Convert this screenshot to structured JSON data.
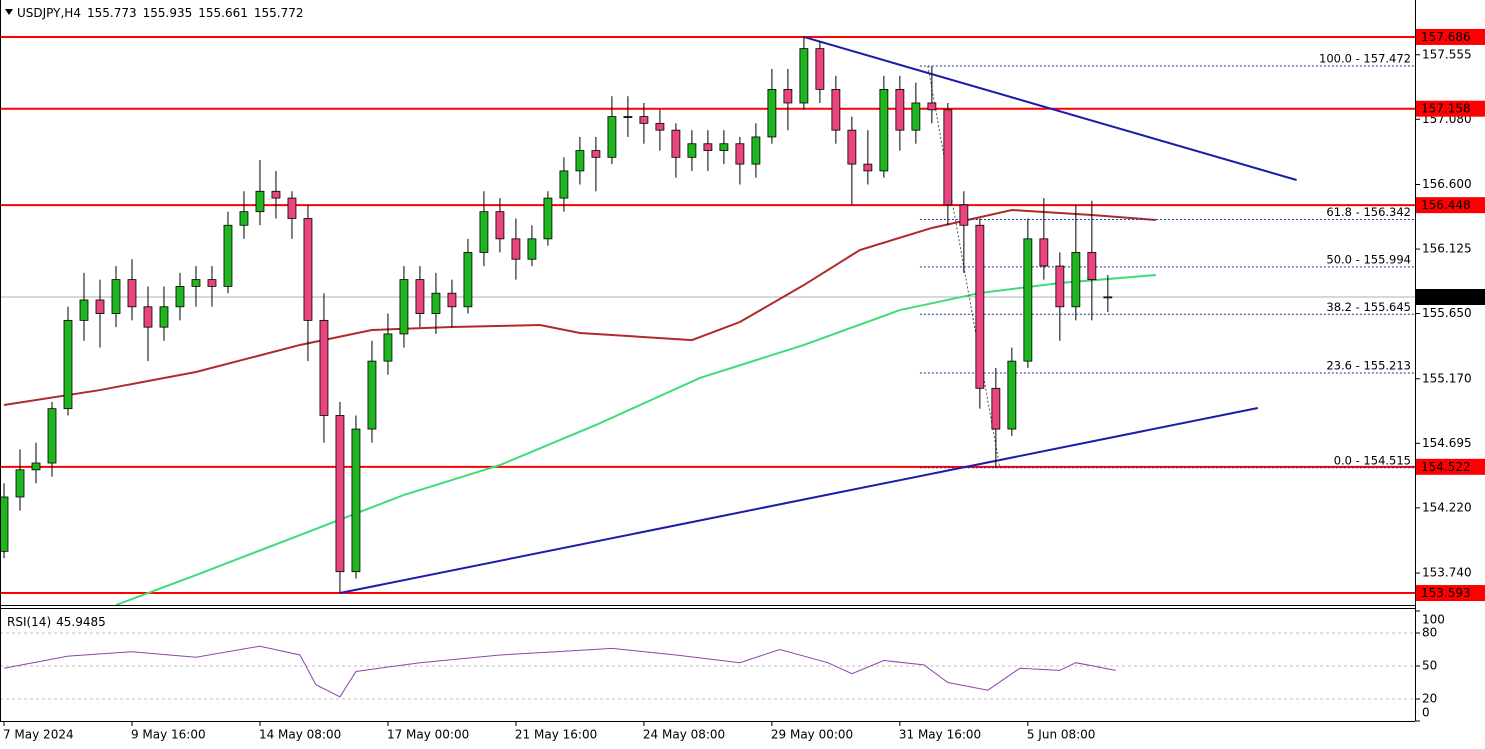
{
  "chart_data": [
    {
      "type": "candlestick",
      "symbol": "USDJPY,H4",
      "header_values": [
        155.773,
        155.935,
        155.661,
        155.772
      ],
      "x": [
        0,
        2,
        4,
        6,
        8,
        10,
        12,
        14,
        16,
        18,
        20,
        22,
        24,
        26,
        28,
        30,
        32,
        34,
        36,
        38,
        40,
        42,
        44,
        46,
        48,
        50,
        52,
        54,
        56,
        58,
        60,
        62,
        64,
        66,
        68,
        70,
        72,
        74,
        76,
        78,
        80,
        82,
        84,
        86,
        88,
        90,
        92,
        94,
        96,
        98,
        100,
        102,
        104,
        106,
        108,
        110,
        112,
        114,
        116,
        118,
        120,
        122,
        124,
        126,
        128,
        130,
        132,
        134,
        136,
        138
      ],
      "open": [
        153.9,
        154.3,
        154.5,
        154.55,
        154.95,
        155.6,
        155.75,
        155.65,
        155.9,
        155.7,
        155.55,
        155.7,
        155.85,
        155.9,
        155.85,
        156.3,
        156.4,
        156.55,
        156.5,
        156.35,
        155.6,
        154.9,
        153.75,
        154.8,
        155.3,
        155.5,
        155.9,
        155.65,
        155.8,
        155.7,
        156.1,
        156.4,
        156.2,
        156.05,
        156.2,
        156.5,
        156.7,
        156.85,
        156.8,
        157.1,
        157.1,
        157.05,
        157.0,
        156.8,
        156.9,
        156.85,
        156.9,
        156.75,
        156.95,
        157.3,
        157.2,
        157.6,
        157.3,
        157.0,
        156.75,
        156.7,
        157.3,
        157.0,
        157.2,
        157.15,
        156.45,
        156.3,
        155.1,
        154.8,
        155.3,
        156.2,
        156.0,
        155.7,
        156.1,
        155.773
      ],
      "high": [
        154.4,
        154.65,
        154.7,
        155.0,
        155.7,
        155.95,
        155.9,
        156.0,
        156.05,
        155.85,
        155.85,
        155.95,
        156.0,
        156.0,
        156.4,
        156.55,
        156.78,
        156.7,
        156.55,
        156.45,
        155.8,
        155.0,
        154.9,
        155.45,
        155.65,
        156.0,
        156.0,
        155.95,
        155.9,
        156.2,
        156.55,
        156.5,
        156.35,
        156.3,
        156.55,
        156.8,
        156.95,
        156.95,
        157.25,
        157.25,
        157.2,
        157.15,
        157.05,
        157.0,
        157.0,
        157.0,
        156.95,
        157.05,
        157.45,
        157.45,
        157.686,
        157.65,
        157.4,
        157.1,
        157.0,
        157.4,
        157.4,
        157.35,
        157.472,
        157.2,
        156.55,
        156.35,
        155.25,
        155.4,
        156.35,
        156.5,
        156.1,
        156.45,
        156.48,
        155.935
      ],
      "low": [
        153.85,
        154.2,
        154.4,
        154.45,
        154.9,
        155.45,
        155.4,
        155.55,
        155.6,
        155.3,
        155.45,
        155.6,
        155.7,
        155.7,
        155.8,
        156.2,
        156.3,
        156.35,
        156.2,
        155.3,
        154.7,
        153.593,
        153.7,
        154.7,
        155.2,
        155.4,
        155.55,
        155.5,
        155.55,
        155.65,
        156.0,
        156.1,
        155.9,
        156.0,
        156.15,
        156.4,
        156.6,
        156.55,
        156.75,
        156.95,
        156.9,
        156.85,
        156.65,
        156.7,
        156.7,
        156.75,
        156.6,
        156.65,
        156.9,
        157.0,
        157.15,
        157.2,
        156.9,
        156.45,
        156.6,
        156.65,
        156.85,
        156.9,
        157.05,
        156.3,
        155.95,
        154.95,
        154.515,
        154.75,
        155.25,
        155.9,
        155.45,
        155.6,
        155.6,
        155.661
      ],
      "close": [
        154.3,
        154.5,
        154.55,
        154.95,
        155.6,
        155.75,
        155.65,
        155.9,
        155.7,
        155.55,
        155.7,
        155.85,
        155.9,
        155.85,
        156.3,
        156.4,
        156.55,
        156.5,
        156.35,
        155.6,
        154.9,
        153.75,
        154.8,
        155.3,
        155.5,
        155.9,
        155.65,
        155.8,
        155.7,
        156.1,
        156.4,
        156.2,
        156.05,
        156.2,
        156.5,
        156.7,
        156.85,
        156.8,
        157.1,
        157.1,
        157.05,
        157.0,
        156.8,
        156.9,
        156.85,
        156.9,
        156.75,
        156.95,
        157.3,
        157.2,
        157.6,
        157.3,
        157.0,
        156.75,
        156.7,
        157.3,
        157.0,
        157.2,
        157.15,
        156.45,
        156.3,
        155.1,
        154.8,
        155.3,
        156.2,
        156.0,
        155.7,
        156.1,
        155.9,
        155.772
      ],
      "up_color": "#1fb51f",
      "down_color": "#e8447e",
      "xlim": [
        -0.5,
        176.4
      ],
      "ylim": [
        153.505,
        157.958
      ],
      "yticks": [
        {
          "value": 157.555,
          "label": "157.555"
        },
        {
          "value": 157.08,
          "label": "157.080"
        },
        {
          "value": 156.6,
          "label": "156.600"
        },
        156.125,
        {
          "value": 155.65,
          "label": "155.650"
        },
        {
          "value": 155.17,
          "label": "155.170"
        },
        154.695,
        {
          "value": 154.22,
          "label": "154.220"
        },
        {
          "value": 153.74,
          "label": "153.740"
        }
      ],
      "xticks": [
        {
          "value": 0,
          "label": "7 May 2024"
        },
        {
          "value": 16,
          "label": "9 May 16:00"
        },
        {
          "value": 32,
          "label": "14 May 08:00"
        },
        {
          "value": 48,
          "label": "17 May 00:00"
        },
        {
          "value": 64,
          "label": "21 May 16:00"
        },
        {
          "value": 80,
          "label": "24 May 08:00"
        },
        {
          "value": 96,
          "label": "29 May 00:00"
        },
        {
          "value": 112,
          "label": "31 May 16:00"
        },
        {
          "value": 128,
          "label": "5 Jun 08:00"
        }
      ],
      "levels": [
        157.686,
        157.158,
        156.448,
        154.522,
        153.593
      ],
      "level_color": "#ff0000",
      "last_price": 155.772,
      "series": [
        {
          "color": "#b02a2a",
          "x": [
            0,
            12,
            24,
            37,
            46,
            56,
            67,
            72,
            86,
            92,
            100,
            107,
            116,
            126,
            136,
            144
          ],
          "values": [
            154.977,
            155.087,
            155.22,
            155.419,
            155.529,
            155.551,
            155.566,
            155.507,
            155.455,
            155.588,
            155.86,
            156.118,
            156.28,
            156.412,
            156.376,
            156.339
          ]
        },
        {
          "color": "#3ddc78",
          "x": [
            14,
            24,
            37,
            50,
            62,
            74,
            87,
            100,
            112,
            122,
            132,
            144
          ],
          "values": [
            153.505,
            153.725,
            154.02,
            154.315,
            154.535,
            154.83,
            155.176,
            155.419,
            155.676,
            155.801,
            155.875,
            155.934
          ]
        }
      ],
      "trendlines": [
        {
          "color": "#1c1ca8",
          "x": [
            100,
            161.6
          ],
          "values": [
            157.686,
            156.633
          ]
        },
        {
          "color": "#1c1ca8",
          "x": [
            42,
            156.75
          ],
          "values": [
            153.593,
            154.955
          ]
        }
      ],
      "fibonacci": {
        "color": "#1f2f9a",
        "x": [
          115.5,
          124.5
        ],
        "levels": [
          {
            "value": 157.472,
            "label": "100.0 - 157.472"
          },
          {
            "value": 156.342,
            "label": "61.8 - 156.342"
          },
          {
            "value": 155.994,
            "label": "50.0 - 155.994"
          },
          {
            "value": 155.645,
            "label": "38.2 - 155.645"
          },
          {
            "value": 155.213,
            "label": "23.6 - 155.213"
          },
          {
            "value": 154.515,
            "label": "0.0 - 154.515"
          }
        ]
      }
    },
    {
      "type": "line",
      "title": "RSI(14)",
      "last_value": 45.9485,
      "color": "#8e44ad",
      "x": [
        0,
        8,
        16,
        24,
        32,
        37,
        39,
        42,
        44,
        52,
        62,
        69,
        76,
        84,
        92,
        97,
        103,
        106,
        110,
        115,
        118,
        123,
        127,
        132,
        134,
        139
      ],
      "values": [
        48,
        59,
        63,
        58,
        68,
        60,
        33,
        22,
        45,
        53,
        60,
        63,
        66,
        60,
        53,
        65,
        53,
        43,
        55,
        51,
        35,
        28,
        48,
        46,
        53,
        46
      ],
      "xlim": [
        -0.5,
        176.4
      ],
      "ylim": [
        0,
        100
      ],
      "yticks": [
        0,
        20,
        50,
        80,
        100
      ]
    }
  ]
}
